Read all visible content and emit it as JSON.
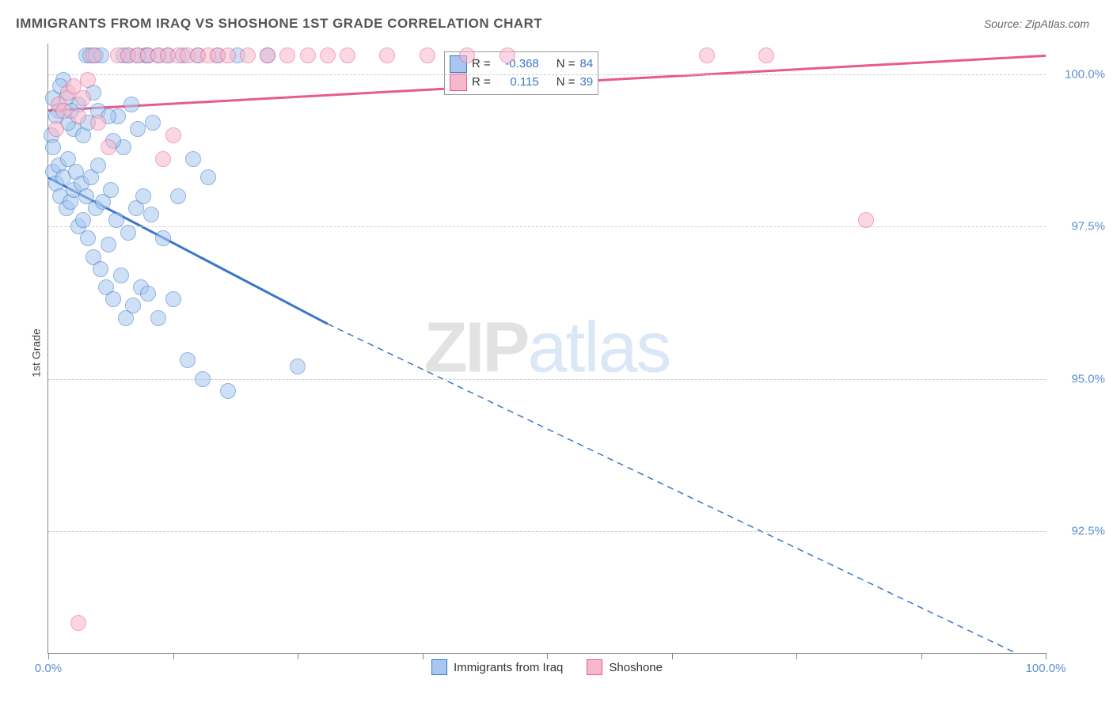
{
  "title": "IMMIGRANTS FROM IRAQ VS SHOSHONE 1ST GRADE CORRELATION CHART",
  "source": "Source: ZipAtlas.com",
  "y_axis_label": "1st Grade",
  "watermark": {
    "zip": "ZIP",
    "atlas": "atlas"
  },
  "chart": {
    "type": "scatter",
    "xlim": [
      0,
      100
    ],
    "ylim": [
      90.5,
      100.5
    ],
    "x_tick_positions": [
      0,
      12.5,
      25,
      37.5,
      50,
      62.5,
      75,
      87.5,
      100
    ],
    "x_tick_labels_shown": {
      "0": "0.0%",
      "100": "100.0%"
    },
    "y_ticks": [
      92.5,
      95.0,
      97.5,
      100.0
    ],
    "y_tick_labels": [
      "92.5%",
      "95.0%",
      "97.5%",
      "100.0%"
    ],
    "background_color": "#ffffff",
    "grid_color": "#cccccc",
    "series": [
      {
        "name": "Immigrants from Iraq",
        "color_fill": "#a7c7f0",
        "color_stroke": "#3a76c8",
        "marker_size": 18,
        "R": "-0.368",
        "N": "84",
        "trend": {
          "solid_from": [
            0,
            98.3
          ],
          "solid_to": [
            28,
            95.9
          ],
          "dash_from": [
            28,
            95.9
          ],
          "dash_to": [
            97,
            90.5
          ]
        },
        "points": [
          [
            0.5,
            98.4
          ],
          [
            0.8,
            98.2
          ],
          [
            1.0,
            98.5
          ],
          [
            1.2,
            98.0
          ],
          [
            1.5,
            98.3
          ],
          [
            1.8,
            97.8
          ],
          [
            2.0,
            98.6
          ],
          [
            2.2,
            97.9
          ],
          [
            2.5,
            98.1
          ],
          [
            2.8,
            98.4
          ],
          [
            3.0,
            97.5
          ],
          [
            3.3,
            98.2
          ],
          [
            3.5,
            97.6
          ],
          [
            3.8,
            98.0
          ],
          [
            4.0,
            97.3
          ],
          [
            4.3,
            98.3
          ],
          [
            4.5,
            97.0
          ],
          [
            4.8,
            97.8
          ],
          [
            5.0,
            98.5
          ],
          [
            5.2,
            96.8
          ],
          [
            5.5,
            97.9
          ],
          [
            5.8,
            96.5
          ],
          [
            6.0,
            97.2
          ],
          [
            6.3,
            98.1
          ],
          [
            6.5,
            96.3
          ],
          [
            6.8,
            97.6
          ],
          [
            7.0,
            99.3
          ],
          [
            7.3,
            96.7
          ],
          [
            7.5,
            98.8
          ],
          [
            7.8,
            96.0
          ],
          [
            8.0,
            97.4
          ],
          [
            8.3,
            99.5
          ],
          [
            8.5,
            96.2
          ],
          [
            8.8,
            97.8
          ],
          [
            9.0,
            99.1
          ],
          [
            9.3,
            96.5
          ],
          [
            9.5,
            98.0
          ],
          [
            9.8,
            100.3
          ],
          [
            10.0,
            96.4
          ],
          [
            10.3,
            97.7
          ],
          [
            10.5,
            99.2
          ],
          [
            11.0,
            96.0
          ],
          [
            11.5,
            97.3
          ],
          [
            12.0,
            100.3
          ],
          [
            12.5,
            96.3
          ],
          [
            13.0,
            98.0
          ],
          [
            13.5,
            100.3
          ],
          [
            14.0,
            95.3
          ],
          [
            14.5,
            98.6
          ],
          [
            15.0,
            100.3
          ],
          [
            15.5,
            95.0
          ],
          [
            16.0,
            98.3
          ],
          [
            17.0,
            100.3
          ],
          [
            18.0,
            94.8
          ],
          [
            2.5,
            99.1
          ],
          [
            3.0,
            99.5
          ],
          [
            3.5,
            99.0
          ],
          [
            1.0,
            99.4
          ],
          [
            1.5,
            99.9
          ],
          [
            2.0,
            99.2
          ],
          [
            0.5,
            99.6
          ],
          [
            0.8,
            99.3
          ],
          [
            4.0,
            99.2
          ],
          [
            4.5,
            99.7
          ],
          [
            5.0,
            99.4
          ],
          [
            1.2,
            99.8
          ],
          [
            6.0,
            99.3
          ],
          [
            6.5,
            98.9
          ],
          [
            0.3,
            99.0
          ],
          [
            0.5,
            98.8
          ],
          [
            8.0,
            100.3
          ],
          [
            9.0,
            100.3
          ],
          [
            10.0,
            100.3
          ],
          [
            11.0,
            100.3
          ],
          [
            19.0,
            100.3
          ],
          [
            22.0,
            100.3
          ],
          [
            25.0,
            95.2
          ],
          [
            3.8,
            100.3
          ],
          [
            4.2,
            100.3
          ],
          [
            4.8,
            100.3
          ],
          [
            5.3,
            100.3
          ],
          [
            1.8,
            99.6
          ],
          [
            2.3,
            99.4
          ],
          [
            7.5,
            100.3
          ]
        ]
      },
      {
        "name": "Shoshone",
        "color_fill": "#f7b8cc",
        "color_stroke": "#e85a8a",
        "marker_size": 18,
        "R": "0.115",
        "N": "39",
        "trend": {
          "solid_from": [
            0,
            99.4
          ],
          "solid_to": [
            100,
            100.3
          ],
          "dash_from": null,
          "dash_to": null
        },
        "points": [
          [
            1.0,
            99.5
          ],
          [
            2.0,
            99.7
          ],
          [
            3.0,
            99.3
          ],
          [
            4.0,
            99.9
          ],
          [
            5.0,
            99.2
          ],
          [
            6.0,
            98.8
          ],
          [
            7.0,
            100.3
          ],
          [
            8.0,
            100.3
          ],
          [
            9.0,
            100.3
          ],
          [
            10.0,
            100.3
          ],
          [
            11.0,
            100.3
          ],
          [
            12.0,
            100.3
          ],
          [
            12.5,
            99.0
          ],
          [
            13.0,
            100.3
          ],
          [
            14.0,
            100.3
          ],
          [
            15.0,
            100.3
          ],
          [
            16.0,
            100.3
          ],
          [
            17.0,
            100.3
          ],
          [
            18.0,
            100.3
          ],
          [
            20.0,
            100.3
          ],
          [
            22.0,
            100.3
          ],
          [
            24.0,
            100.3
          ],
          [
            26.0,
            100.3
          ],
          [
            28.0,
            100.3
          ],
          [
            30.0,
            100.3
          ],
          [
            34.0,
            100.3
          ],
          [
            38.0,
            100.3
          ],
          [
            42.0,
            100.3
          ],
          [
            46.0,
            100.3
          ],
          [
            66.0,
            100.3
          ],
          [
            72.0,
            100.3
          ],
          [
            82.0,
            97.6
          ],
          [
            3.5,
            99.6
          ],
          [
            4.5,
            100.3
          ],
          [
            2.5,
            99.8
          ],
          [
            1.5,
            99.4
          ],
          [
            0.8,
            99.1
          ],
          [
            11.5,
            98.6
          ],
          [
            3.0,
            91.0
          ]
        ]
      }
    ]
  },
  "stats_legend": {
    "rows": [
      {
        "series_index": 0,
        "r_label": "R =",
        "r_value": "-0.368",
        "n_label": "N =",
        "n_value": "84"
      },
      {
        "series_index": 1,
        "r_label": "R =",
        "r_value": "0.115",
        "n_label": "N =",
        "n_value": "39"
      }
    ]
  },
  "bottom_legend": {
    "items": [
      {
        "series_index": 0,
        "label": "Immigrants from Iraq"
      },
      {
        "series_index": 1,
        "label": "Shoshone"
      }
    ]
  }
}
